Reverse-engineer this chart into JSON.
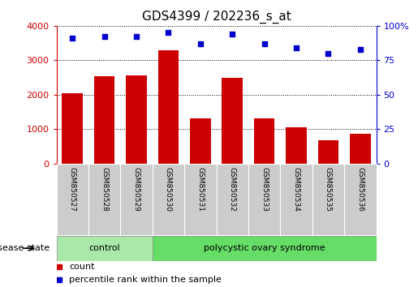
{
  "title": "GDS4399 / 202236_s_at",
  "samples": [
    "GSM850527",
    "GSM850528",
    "GSM850529",
    "GSM850530",
    "GSM850531",
    "GSM850532",
    "GSM850533",
    "GSM850534",
    "GSM850535",
    "GSM850536"
  ],
  "counts": [
    2050,
    2530,
    2570,
    3280,
    1320,
    2500,
    1320,
    1060,
    670,
    860
  ],
  "percentiles": [
    91,
    92,
    92,
    95,
    87,
    94,
    87,
    84,
    80,
    83
  ],
  "ylim_left": [
    0,
    4000
  ],
  "ylim_right": [
    0,
    100
  ],
  "yticks_left": [
    0,
    1000,
    2000,
    3000,
    4000
  ],
  "yticks_right": [
    0,
    25,
    50,
    75,
    100
  ],
  "bar_color": "#cc0000",
  "scatter_color": "#0000cc",
  "control_samples": 3,
  "group_labels": [
    "control",
    "polycystic ovary syndrome"
  ],
  "group_color_ctrl": "#aae8aa",
  "group_color_pcos": "#66dd66",
  "disease_state_label": "disease state",
  "legend_labels": [
    "count",
    "percentile rank within the sample"
  ],
  "legend_colors": [
    "#cc0000",
    "#0000cc"
  ],
  "tick_bg_color": "#cccccc",
  "title_fontsize": 11,
  "axis_fontsize": 8,
  "sample_fontsize": 6.5,
  "group_fontsize": 8,
  "legend_fontsize": 8,
  "ds_fontsize": 8
}
